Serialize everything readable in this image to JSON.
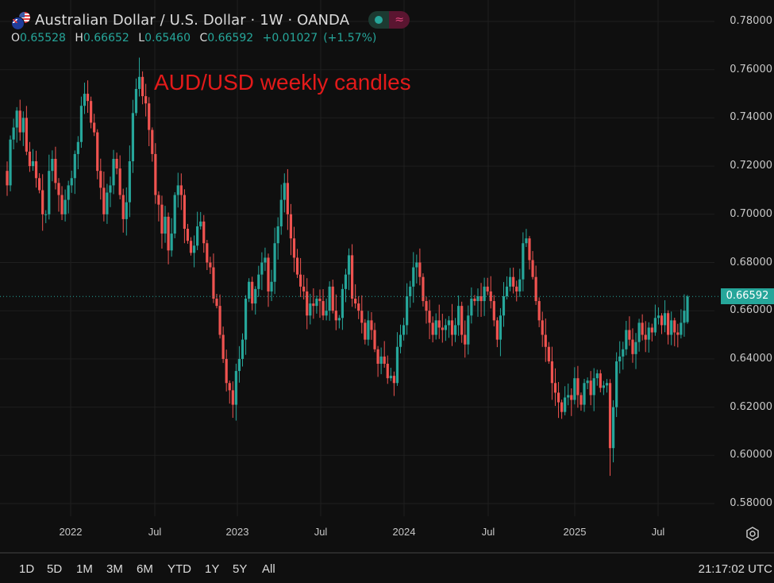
{
  "header": {
    "title": "Australian Dollar / U.S. Dollar · 1W · OANDA",
    "symbol_icon": "aud-usd-flags-icon",
    "ohlc": {
      "open_label": "O",
      "open": "0.65528",
      "high_label": "H",
      "high": "0.66652",
      "low_label": "L",
      "low": "0.65460",
      "close_label": "C",
      "close": "0.66592",
      "change": "+0.01027",
      "change_pct": "(+1.57%)"
    },
    "toggle_icons": [
      "market-open-dot-icon",
      "wave-approx-icon"
    ]
  },
  "annotation": "AUD/USD weekly candles",
  "price_axis": {
    "labels": [
      "0.78000",
      "0.76000",
      "0.74000",
      "0.72000",
      "0.70000",
      "0.68000",
      "0.66000",
      "0.64000",
      "0.62000",
      "0.60000",
      "0.58000"
    ],
    "current_price": "0.66592"
  },
  "time_axis": {
    "labels": [
      "2022",
      "Jul",
      "2023",
      "Jul",
      "2024",
      "Jul",
      "2025",
      "Jul"
    ]
  },
  "range_buttons": [
    "1D",
    "5D",
    "1M",
    "3M",
    "6M",
    "YTD",
    "1Y",
    "5Y",
    "All"
  ],
  "clock": "21:17:02 UTC",
  "colors": {
    "up": "#26a69a",
    "down": "#ef5350",
    "background": "#0f0f0f",
    "grid": "#1f1f1f",
    "annotation": "#e31a1a"
  },
  "chart_data": {
    "type": "candlestick",
    "title": "Australian Dollar / U.S. Dollar · 1W · OANDA",
    "annotation": "AUD/USD weekly candles",
    "xlabel": "",
    "ylabel": "",
    "ylim": [
      0.575,
      0.785
    ],
    "y_ticks": [
      0.58,
      0.6,
      0.62,
      0.64,
      0.66,
      0.68,
      0.7,
      0.72,
      0.74,
      0.76,
      0.78
    ],
    "x_ticks": [
      "2022",
      "Jul",
      "2023",
      "Jul",
      "2024",
      "Jul",
      "2025",
      "Jul"
    ],
    "interval": "1W",
    "last": {
      "open": 0.65528,
      "high": 0.66652,
      "low": 0.6546,
      "close": 0.66592,
      "change": 0.01027,
      "change_pct": 1.57
    },
    "closes": [
      0.712,
      0.731,
      0.736,
      0.743,
      0.734,
      0.74,
      0.726,
      0.72,
      0.722,
      0.715,
      0.71,
      0.7,
      0.7,
      0.718,
      0.723,
      0.713,
      0.708,
      0.7,
      0.706,
      0.712,
      0.715,
      0.725,
      0.73,
      0.745,
      0.75,
      0.747,
      0.738,
      0.734,
      0.718,
      0.711,
      0.7,
      0.709,
      0.712,
      0.723,
      0.719,
      0.708,
      0.698,
      0.705,
      0.722,
      0.742,
      0.752,
      0.757,
      0.749,
      0.746,
      0.735,
      0.725,
      0.708,
      0.704,
      0.692,
      0.699,
      0.685,
      0.692,
      0.708,
      0.712,
      0.708,
      0.694,
      0.689,
      0.684,
      0.687,
      0.695,
      0.697,
      0.688,
      0.68,
      0.678,
      0.665,
      0.662,
      0.65,
      0.64,
      0.63,
      0.627,
      0.621,
      0.635,
      0.64,
      0.648,
      0.665,
      0.672,
      0.663,
      0.669,
      0.675,
      0.68,
      0.682,
      0.668,
      0.672,
      0.688,
      0.695,
      0.706,
      0.713,
      0.7,
      0.69,
      0.682,
      0.675,
      0.67,
      0.668,
      0.658,
      0.663,
      0.662,
      0.665,
      0.664,
      0.658,
      0.66,
      0.67,
      0.66,
      0.656,
      0.657,
      0.669,
      0.675,
      0.683,
      0.665,
      0.663,
      0.66,
      0.655,
      0.648,
      0.656,
      0.652,
      0.644,
      0.638,
      0.641,
      0.638,
      0.632,
      0.633,
      0.63,
      0.645,
      0.65,
      0.654,
      0.666,
      0.67,
      0.678,
      0.68,
      0.674,
      0.664,
      0.66,
      0.655,
      0.65,
      0.656,
      0.653,
      0.652,
      0.654,
      0.656,
      0.65,
      0.654,
      0.662,
      0.65,
      0.646,
      0.658,
      0.665,
      0.664,
      0.666,
      0.664,
      0.67,
      0.668,
      0.664,
      0.656,
      0.648,
      0.658,
      0.666,
      0.67,
      0.674,
      0.67,
      0.668,
      0.673,
      0.688,
      0.69,
      0.681,
      0.674,
      0.664,
      0.656,
      0.65,
      0.645,
      0.639,
      0.63,
      0.626,
      0.622,
      0.618,
      0.624,
      0.625,
      0.623,
      0.632,
      0.625,
      0.621,
      0.63,
      0.631,
      0.625,
      0.632,
      0.634,
      0.628,
      0.629,
      0.63,
      0.603,
      0.62,
      0.639,
      0.641,
      0.644,
      0.652,
      0.648,
      0.642,
      0.647,
      0.655,
      0.65,
      0.648,
      0.653,
      0.651,
      0.657,
      0.658,
      0.654,
      0.659,
      0.65,
      0.656,
      0.651,
      0.65,
      0.655,
      0.66,
      0.6659
    ]
  }
}
